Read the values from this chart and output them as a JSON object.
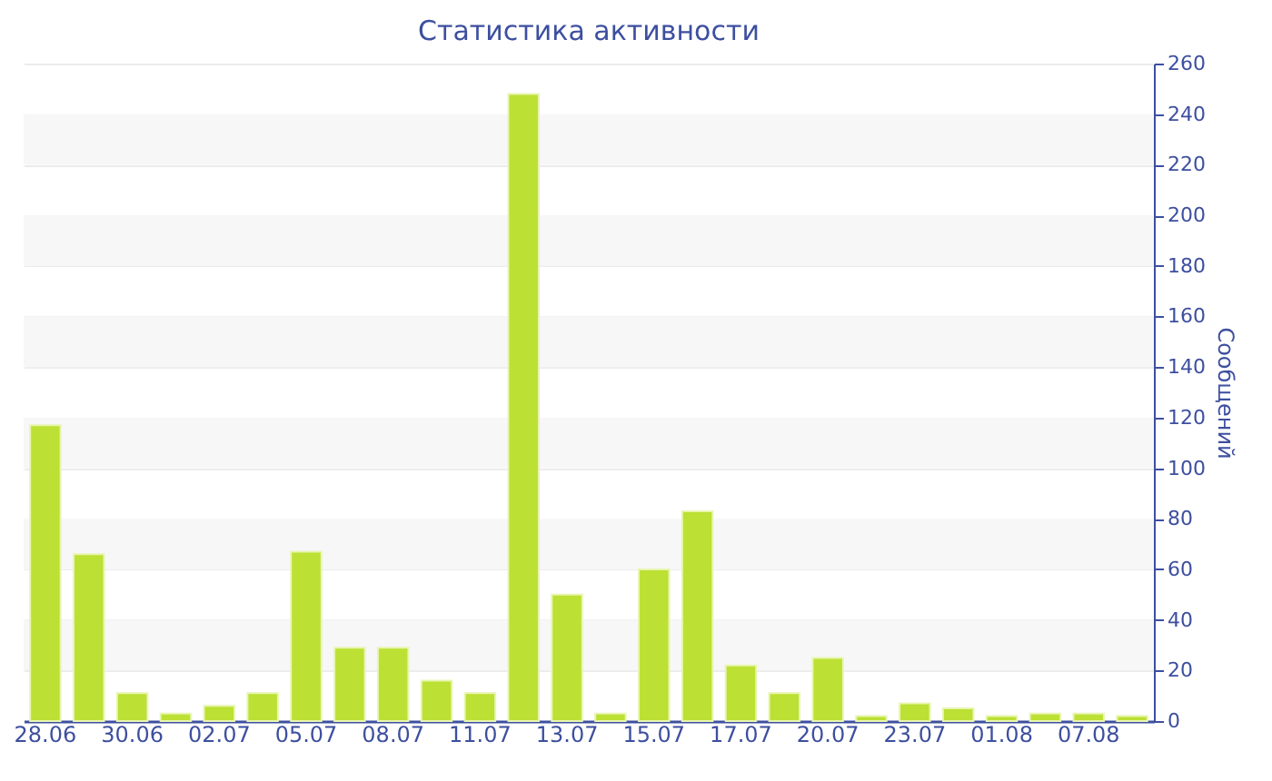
{
  "chart_data": {
    "type": "bar",
    "title": "Статистика активности",
    "ylabel": "Сообщений",
    "categories": [
      "28.06",
      null,
      "30.06",
      null,
      "02.07",
      null,
      "05.07",
      null,
      "08.07",
      null,
      "11.07",
      null,
      "13.07",
      null,
      "15.07",
      null,
      "17.07",
      null,
      "20.07",
      null,
      "23.07",
      null,
      "01.08",
      null,
      "07.08",
      null
    ],
    "values": [
      117,
      66,
      11,
      3,
      6,
      11,
      67,
      29,
      29,
      16,
      11,
      248,
      50,
      3,
      60,
      83,
      22,
      11,
      25,
      2,
      7,
      5,
      2,
      3,
      3,
      2
    ],
    "color": "#bce034",
    "ylim": [
      0,
      260
    ],
    "yticks": [
      0,
      20,
      40,
      60,
      80,
      100,
      120,
      140,
      160,
      180,
      200,
      220,
      240,
      260
    ],
    "grid": "y"
  }
}
